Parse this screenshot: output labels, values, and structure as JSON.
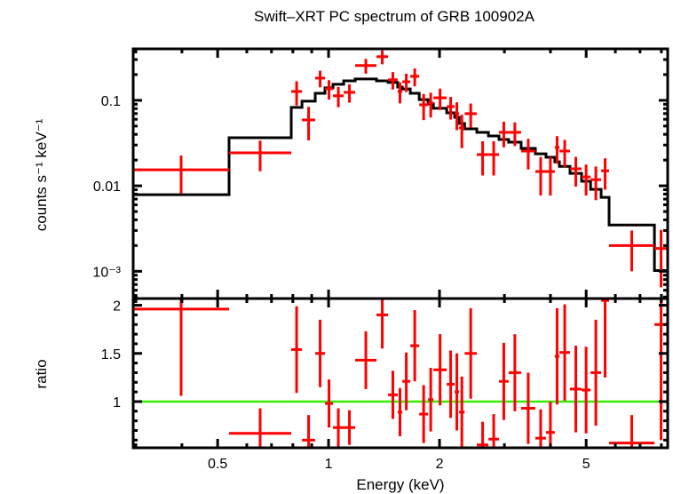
{
  "chart_data": [
    {
      "type": "line",
      "title": "Swift–XRT PC spectrum of GRB 100902A",
      "xlabel": "",
      "ylabel": "counts s⁻¹ keV⁻¹",
      "xscale": "log",
      "yscale": "log",
      "xlim": [
        0.295,
        8.32
      ],
      "ylim": [
        0.00048,
        0.4
      ],
      "yticks": [
        {
          "v": 0.1,
          "label": "0.1"
        },
        {
          "v": 0.01,
          "label": "0.01"
        },
        {
          "v": 0.001,
          "label": "10⁻³"
        }
      ],
      "model": {
        "name": "model",
        "color": "#000000",
        "edges": [
          0.295,
          0.537,
          0.792,
          0.847,
          0.92,
          0.978,
          1.028,
          1.099,
          1.181,
          1.349,
          1.45,
          1.54,
          1.585,
          1.666,
          1.762,
          1.862,
          1.925,
          2.092,
          2.198,
          2.26,
          2.34,
          2.525,
          2.715,
          2.9,
          3.08,
          3.33,
          3.64,
          3.89,
          4.11,
          4.23,
          4.52,
          4.86,
          5.14,
          5.49,
          5.77,
          7.66,
          8.32
        ],
        "values": [
          0.00787,
          0.0365,
          0.0826,
          0.0976,
          0.121,
          0.14,
          0.154,
          0.169,
          0.178,
          0.169,
          0.162,
          0.143,
          0.136,
          0.121,
          0.102,
          0.0908,
          0.0806,
          0.0715,
          0.0634,
          0.0536,
          0.0464,
          0.0422,
          0.0383,
          0.0348,
          0.0324,
          0.0274,
          0.0237,
          0.0216,
          0.0191,
          0.0169,
          0.014,
          0.0113,
          0.00909,
          0.00732,
          0.00348,
          0.00102
        ]
      },
      "data": {
        "name": "data",
        "color": "#ff0000",
        "flux": [
          0.0154,
          0.0243,
          0.127,
          0.059,
          0.182,
          0.137,
          0.113,
          0.124,
          0.255,
          0.324,
          0.174,
          0.127,
          0.165,
          0.191,
          0.0887,
          0.093,
          0.107,
          0.0846,
          0.0698,
          0.0476,
          0.0698,
          0.0232,
          0.0232,
          0.0422,
          0.0422,
          0.0255,
          0.0147,
          0.0147,
          0.0281,
          0.0255,
          0.0158,
          0.0127,
          0.0118,
          0.015,
          0.002,
          0.00185
        ],
        "flux_err": [
          0.0072,
          0.0095,
          0.04,
          0.025,
          0.04,
          0.035,
          0.03,
          0.03,
          0.05,
          0.06,
          0.04,
          0.035,
          0.04,
          0.045,
          0.03,
          0.03,
          0.03,
          0.025,
          0.025,
          0.02,
          0.022,
          0.01,
          0.01,
          0.014,
          0.013,
          0.01,
          0.007,
          0.007,
          0.01,
          0.009,
          0.006,
          0.005,
          0.005,
          0.006,
          0.001,
          0.0012
        ]
      }
    },
    {
      "type": "line",
      "title": "",
      "xlabel": "Energy (keV)",
      "ylabel": "ratio",
      "xscale": "log",
      "xlim": [
        0.295,
        8.32
      ],
      "ylim": [
        0.52,
        2.07
      ],
      "xticks": [
        {
          "v": 0.5,
          "label": "0.5"
        },
        {
          "v": 1,
          "label": "1"
        },
        {
          "v": 2,
          "label": "2"
        },
        {
          "v": 5,
          "label": "5"
        }
      ],
      "yticks": [
        {
          "v": 2,
          "label": "2"
        },
        {
          "v": 1.5,
          "label": "1.5"
        },
        {
          "v": 1,
          "label": "1"
        }
      ],
      "reference_line": {
        "value": 1,
        "color": "#33ee00"
      },
      "ratio": [
        1.96,
        0.67,
        1.54,
        0.6,
        1.5,
        0.98,
        0.73,
        0.73,
        1.43,
        1.9,
        1.07,
        0.89,
        1.21,
        1.58,
        0.87,
        1.02,
        1.33,
        1.18,
        1.1,
        0.89,
        1.5,
        0.55,
        0.61,
        1.21,
        1.3,
        0.93,
        0.62,
        0.68,
        1.47,
        1.51,
        1.13,
        1.12,
        1.3,
        2.05,
        0.57,
        1.8
      ],
      "ratio_err": [
        0.9,
        0.26,
        0.45,
        0.26,
        0.35,
        0.25,
        0.2,
        0.18,
        0.3,
        0.35,
        0.25,
        0.25,
        0.3,
        0.37,
        0.3,
        0.33,
        0.37,
        0.35,
        0.4,
        0.37,
        0.47,
        0.24,
        0.26,
        0.4,
        0.4,
        0.37,
        0.3,
        0.32,
        0.5,
        0.5,
        0.45,
        0.45,
        0.55,
        0.8,
        0.29,
        1.2
      ]
    }
  ]
}
